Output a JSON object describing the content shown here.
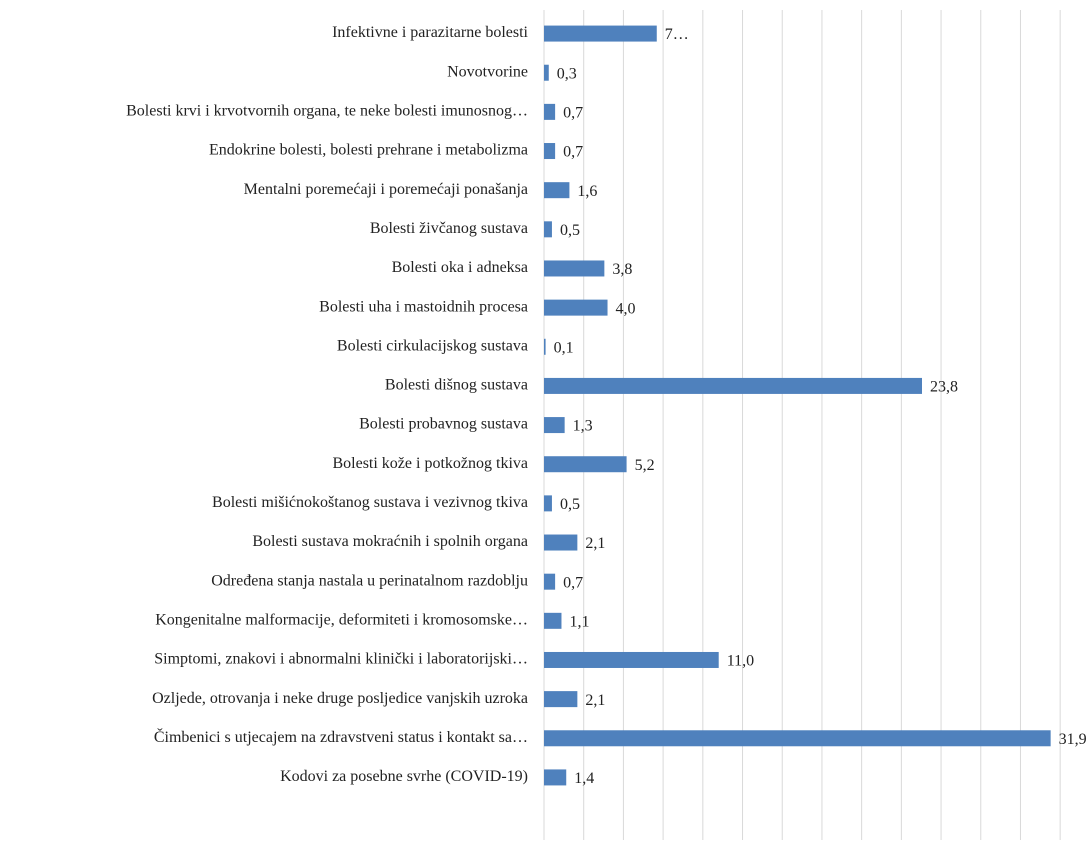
{
  "chart_data": {
    "type": "hbar",
    "categories": [
      "Infektivne i parazitarne bolesti",
      "Novotvorine",
      "Bolesti krvi i krvotvornih organa, te neke bolesti imunosnog…",
      "Endokrine bolesti, bolesti prehrane i metabolizma",
      "Mentalni poremećaji i poremećaji ponašanja",
      "Bolesti živčanog sustava",
      "Bolesti oka i adneksa",
      "Bolesti uha i mastoidnih procesa",
      "Bolesti cirkulacijskog sustava",
      "Bolesti dišnog sustava",
      "Bolesti probavnog sustava",
      "Bolesti kože i potkožnog tkiva",
      "Bolesti mišićnokoštanog sustava i vezivnog tkiva",
      "Bolesti sustava mokraćnih i spolnih organa",
      "Određena stanja nastala u perinatalnom razdoblju",
      "Kongenitalne malformacije, deformiteti i kromosomske…",
      "Simptomi, znakovi i abnormalni klinički i laboratorijski…",
      "Ozljede, otrovanja i neke druge posljedice vanjskih uzroka",
      "Čimbenici s utjecajem na zdravstveni status i kontakt sa…",
      "Kodovi za posebne svrhe (COVID-19)"
    ],
    "values": [
      7.1,
      0.3,
      0.7,
      0.7,
      1.6,
      0.5,
      3.8,
      4.0,
      0.1,
      23.8,
      1.3,
      5.2,
      0.5,
      2.1,
      0.7,
      1.1,
      11.0,
      2.1,
      31.9,
      1.4
    ],
    "value_labels": [
      "7…",
      "0,3",
      "0,7",
      "0,7",
      "1,6",
      "0,5",
      "3,8",
      "4,0",
      "0,1",
      "23,8",
      "1,3",
      "5,2",
      "0,5",
      "2,1",
      "0,7",
      "1,1",
      "11,0",
      "2,1",
      "31,9",
      "1,4"
    ],
    "color": "#4f81bd",
    "xlim": [
      0,
      34
    ],
    "xticks": [
      0,
      2.5,
      5,
      7.5,
      10,
      12.5,
      15,
      17.5,
      20,
      22.5,
      25,
      27.5,
      30,
      32.5
    ],
    "grid": true
  }
}
